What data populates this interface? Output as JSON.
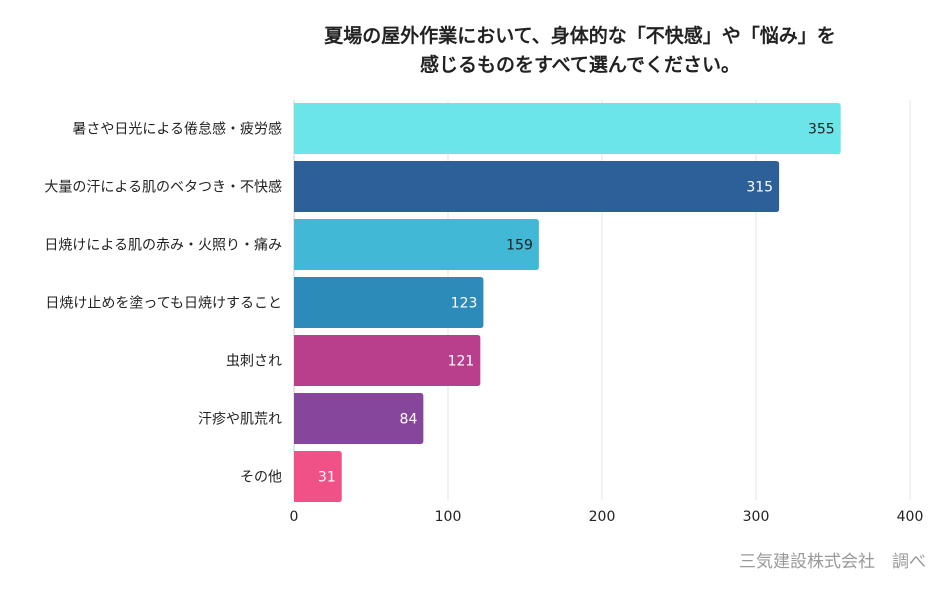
{
  "chart_data": {
    "type": "bar",
    "orientation": "horizontal",
    "title_lines": [
      "夏場の屋外作業において、身体的な「不快感」や「悩み」を",
      "感じるものをすべて選んでください。"
    ],
    "categories": [
      "暑さや日光による倦怠感・疲労感",
      "大量の汗による肌のベタつき・不快感",
      "日焼けによる肌の赤み・火照り・痛み",
      "日焼け止めを塗っても日焼けすること",
      "虫刺され",
      "汗疹や肌荒れ",
      "その他"
    ],
    "values": [
      355,
      315,
      159,
      123,
      121,
      84,
      31
    ],
    "value_labels": [
      "355",
      "315",
      "159",
      "123",
      "121",
      "84",
      "31"
    ],
    "colors": [
      "#6ce5e8",
      "#2d5f99",
      "#41b8d5",
      "#2d8bba",
      "#b93f8c",
      "#86469c",
      "#f05287"
    ],
    "value_label_colors": [
      "#222222",
      "#ffffff",
      "#222222",
      "#ffffff",
      "#ffffff",
      "#ffffff",
      "#ffffff"
    ],
    "xlim": [
      0,
      400
    ],
    "xticks": [
      0,
      100,
      200,
      300,
      400
    ],
    "xtick_labels": [
      "0",
      "100",
      "200",
      "300",
      "400"
    ],
    "grid": true,
    "legend": "none",
    "source": "三気建設株式会社　調べ"
  }
}
